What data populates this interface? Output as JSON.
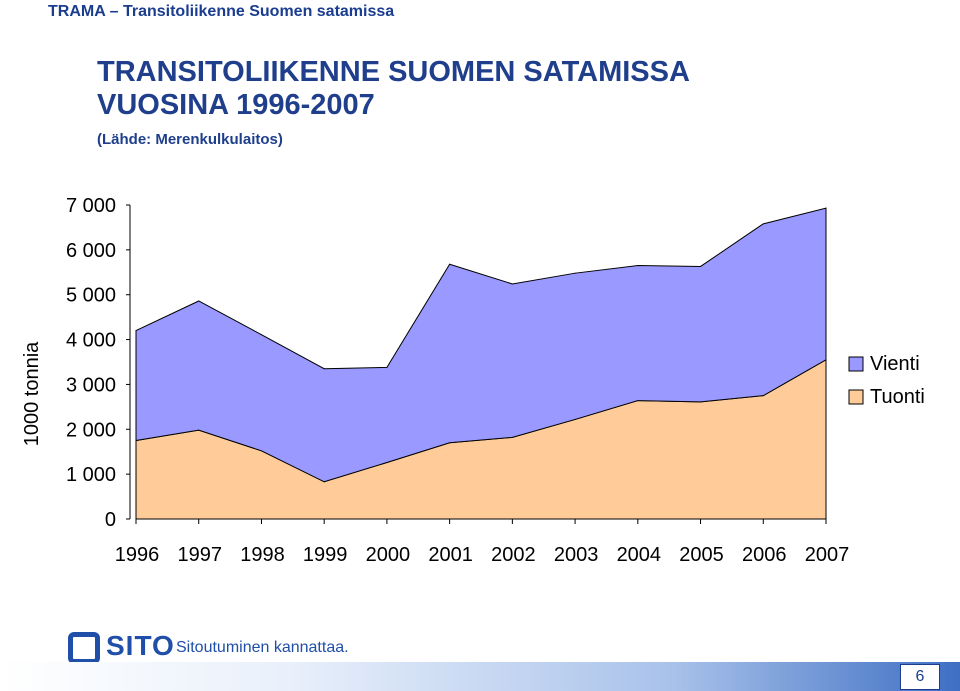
{
  "header": {
    "title": "TRAMA – Transitoliikenne Suomen satamissa"
  },
  "slide": {
    "title_line1": "TRANSITOLIIKENNE SUOMEN SATAMISSA",
    "title_line2": "VUOSINA 1996-2007",
    "source": "(Lähde: Merenkulkulaitos)"
  },
  "colors": {
    "vienti": "#9999ff",
    "tuonti": "#ffcc99",
    "title": "#1f3f8c"
  },
  "chart_data": {
    "type": "area",
    "stacked": true,
    "title": "TRANSITOLIIKENNE SUOMEN SATAMISSA VUOSINA 1996-2007",
    "ylabel": "1000 tonnia",
    "xlabel": "",
    "ylim": [
      0,
      7000
    ],
    "yticks": [
      0,
      1000,
      2000,
      3000,
      4000,
      5000,
      6000,
      7000
    ],
    "ytick_labels": [
      "0",
      "1 000",
      "2 000",
      "3 000",
      "4 000",
      "5 000",
      "6 000",
      "7 000"
    ],
    "categories": [
      "1996",
      "1997",
      "1998",
      "1999",
      "2000",
      "2001",
      "2002",
      "2003",
      "2004",
      "2005",
      "2006",
      "2007"
    ],
    "series": [
      {
        "name": "Tuonti",
        "values": [
          1750,
          1980,
          1520,
          830,
          1260,
          1700,
          1820,
          2220,
          2640,
          2610,
          2750,
          3550
        ]
      },
      {
        "name": "Vienti",
        "values": [
          2450,
          2880,
          2590,
          2520,
          2120,
          3980,
          3420,
          3260,
          3010,
          3020,
          3830,
          3380
        ]
      }
    ],
    "legend": [
      "Vienti",
      "Tuonti"
    ],
    "legend_position": "right"
  },
  "footer": {
    "brand": "SITO",
    "tagline": "Sitoutuminen kannattaa.",
    "page_number": "6"
  }
}
